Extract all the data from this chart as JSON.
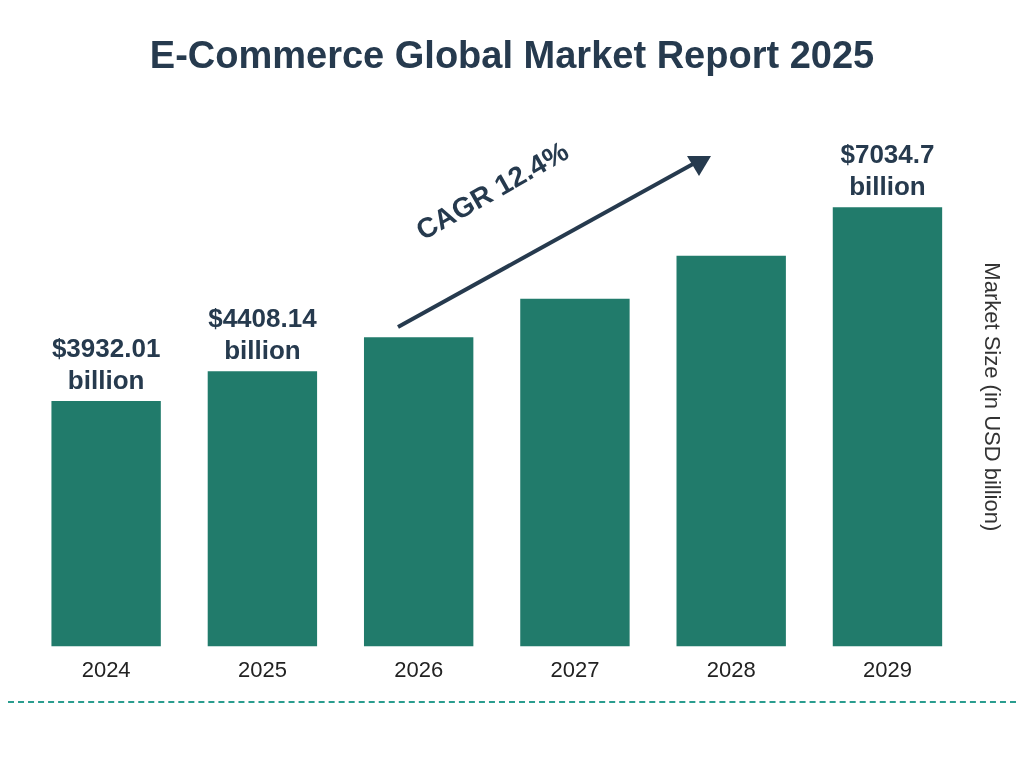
{
  "chart_data": {
    "type": "bar",
    "title": "E-Commerce Global Market Report 2025",
    "ylabel": "Market Size (in USD billion)",
    "categories": [
      "2024",
      "2025",
      "2026",
      "2027",
      "2028",
      "2029"
    ],
    "values": [
      3932.01,
      4408.14,
      4955,
      5569,
      6260,
      7034.7
    ],
    "value_labels": [
      "$3932.01 billion",
      "$4408.14 billion",
      null,
      null,
      null,
      "$7034.7 billion"
    ],
    "color": "#217b6b",
    "tick_labels": "x",
    "grid": false,
    "legend": false,
    "annotations": [
      "CAGR 12.4%"
    ]
  }
}
